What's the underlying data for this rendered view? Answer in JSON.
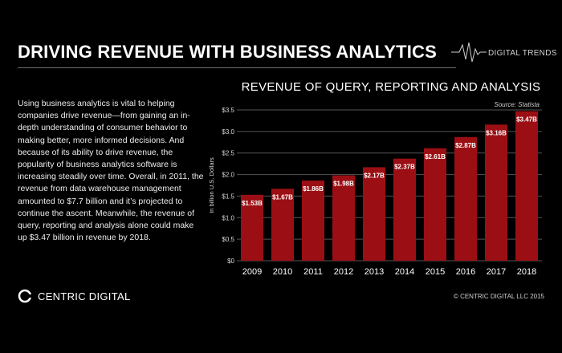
{
  "header": {
    "title": "DRIVING REVENUE WITH BUSINESS ANALYTICS",
    "tag": "DIGITAL TRENDS"
  },
  "body_text": "Using business analytics is vital to helping companies drive revenue—from gaining an in-depth understanding of consumer behavior to making better, more informed decisions. And because of its ability to drive revenue, the popularity of business analytics software is increasing steadily over time. Overall, in 2011, the revenue from data warehouse management amounted to $7.7 billion and it’s projected to continue the ascent. Meanwhile, the revenue of query, reporting and analysis alone could make up $3.47 billion in revenue by 2018.",
  "footer": {
    "logo_text": "CENTRIC DIGITAL",
    "copyright": "© CENTRIC DIGITAL LLC 2015"
  },
  "colors": {
    "background": "#000000",
    "bar": "#9b0f14",
    "gridline": "#555555",
    "text": "#ffffff"
  },
  "chart_data": {
    "type": "bar",
    "title": "REVENUE OF QUERY, REPORTING AND ANALYSIS",
    "source": "Source:  Statista",
    "ylabel": "In billion U.S. Dollars",
    "xlabel": "",
    "categories": [
      "2009",
      "2010",
      "2011",
      "2012",
      "2013",
      "2014",
      "2015",
      "2016",
      "2017",
      "2018"
    ],
    "values": [
      1.53,
      1.67,
      1.86,
      1.98,
      2.17,
      2.37,
      2.61,
      2.87,
      3.16,
      3.47
    ],
    "data_labels": [
      "$1.53B",
      "$1.67B",
      "$1.86B",
      "$1.98B",
      "$2.17B",
      "$2.37B",
      "$2.61B",
      "$2.87B",
      "$3.16B",
      "$3.47B"
    ],
    "ylim": [
      0,
      3.5
    ],
    "yticks": [
      0,
      0.5,
      1.0,
      1.5,
      2.0,
      2.5,
      3.0,
      3.5
    ],
    "ytick_labels": [
      "$0",
      "$0.5",
      "$1.0",
      "$1.5",
      "$2.0",
      "$2.5",
      "$3.0",
      "$3.5"
    ],
    "grid": true
  }
}
